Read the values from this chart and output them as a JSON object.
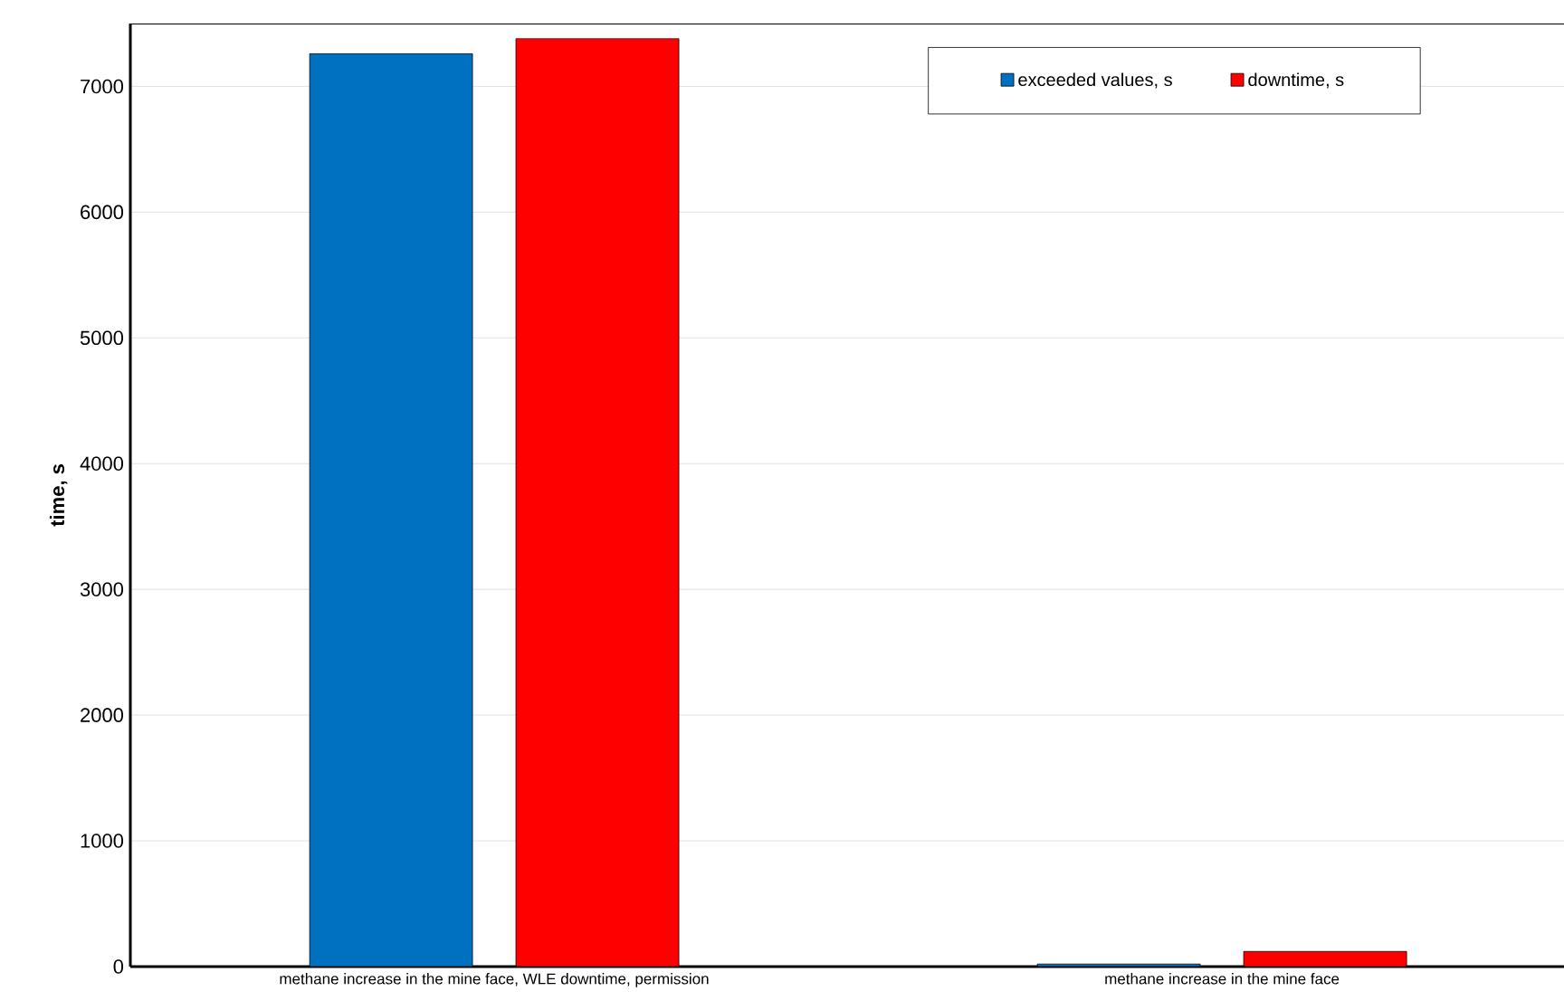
{
  "chart_data": {
    "type": "bar",
    "ylabel": "time, s",
    "categories": [
      "methane increase in the mine face, WLE downtime, permission",
      "methane increase in the mine face"
    ],
    "series": [
      {
        "name": "exceeded values, s",
        "color": "#0070c0",
        "values": [
          7260,
          20
        ]
      },
      {
        "name": "downtime, s",
        "color": "#ff0000",
        "values": [
          7380,
          120
        ]
      }
    ],
    "ylim": [
      0,
      7500
    ],
    "yticks": [
      0,
      1000,
      2000,
      3000,
      4000,
      5000,
      6000,
      7000
    ],
    "grid": "y",
    "legend": "top right"
  }
}
